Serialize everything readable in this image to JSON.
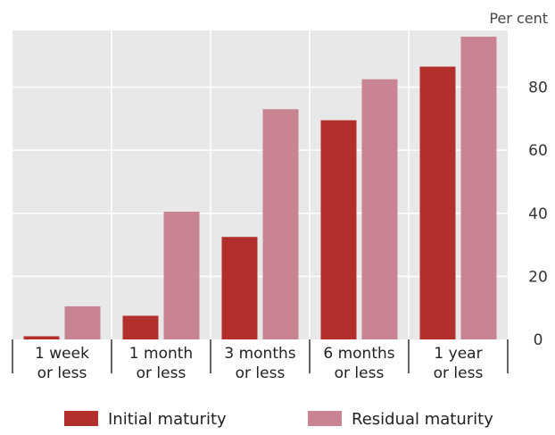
{
  "chart_data": {
    "type": "bar",
    "categories": [
      [
        "1 week",
        "or less"
      ],
      [
        "1 month",
        "or less"
      ],
      [
        "3 months",
        "or less"
      ],
      [
        "6 months",
        "or less"
      ],
      [
        "1 year",
        "or less"
      ]
    ],
    "series": [
      {
        "name": "Initial maturity",
        "values": [
          1,
          7.5,
          32.5,
          69.5,
          86.5
        ],
        "color": "#b22f2c"
      },
      {
        "name": "Residual maturity",
        "values": [
          10.5,
          40.5,
          73,
          82.5,
          96
        ],
        "color": "#c98493"
      }
    ],
    "unit_label": "Per cent",
    "yticks": [
      0,
      20,
      40,
      60,
      80
    ],
    "ylim": [
      0,
      98
    ],
    "grid": true,
    "legend_position": "bottom",
    "plot_background": "#e8e8e8",
    "grid_color": "#ffffff"
  }
}
